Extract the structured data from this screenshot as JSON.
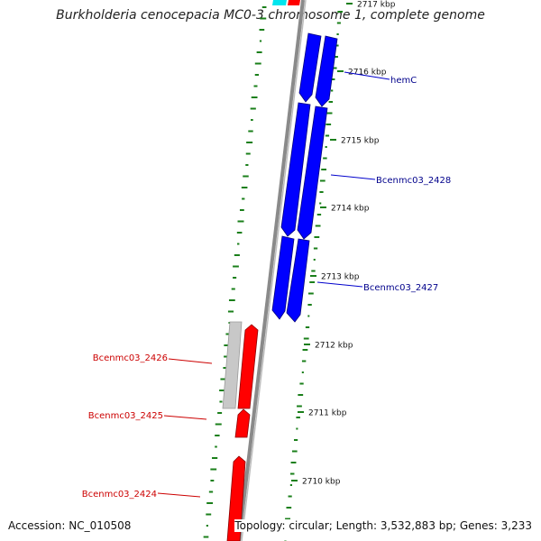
{
  "title": "Burkholderia cenocepacia MC0-3 chromosome 1, complete genome",
  "footer": {
    "accession": "Accession: NC_010508",
    "summary": "Topology: circular; Length: 3,532,883 bp; Genes: 3,233"
  },
  "colors": {
    "forward_gene": "#0000ff",
    "reverse_gene": "#ff0000",
    "other_gene": "#c0c0c0",
    "highlight_gene": "#00e5ee",
    "backbone": "#808080",
    "gc_skew": "#1a7f1a",
    "forward_label": "#00008b",
    "reverse_label": "#cc0000"
  },
  "scale_ticks": [
    "2717 kbp",
    "2716 kbp",
    "2715 kbp",
    "2714 kbp",
    "2713 kbp",
    "2712 kbp",
    "2711 kbp",
    "2710 kbp"
  ],
  "gene_labels": [
    {
      "name": "hemC",
      "strand": "forward"
    },
    {
      "name": "Bcenmc03_2428",
      "strand": "forward"
    },
    {
      "name": "Bcenmc03_2427",
      "strand": "forward"
    },
    {
      "name": "Bcenmc03_2426",
      "strand": "reverse"
    },
    {
      "name": "Bcenmc03_2425",
      "strand": "reverse"
    },
    {
      "name": "Bcenmc03_2424",
      "strand": "reverse"
    }
  ]
}
